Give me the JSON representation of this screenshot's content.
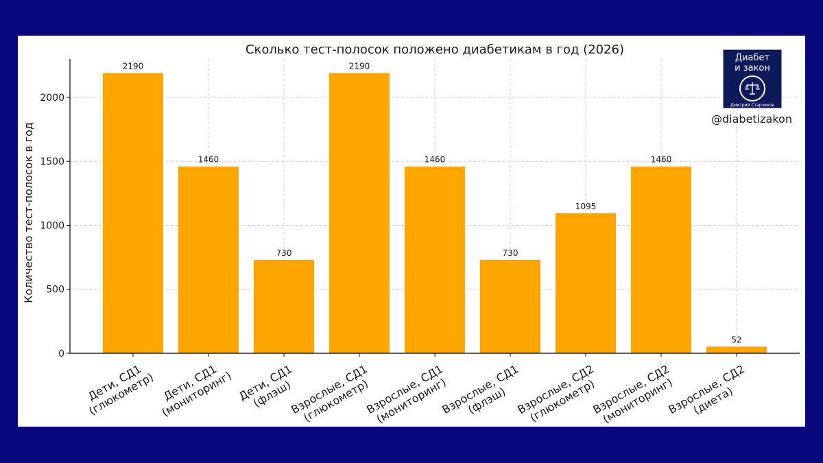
{
  "chart_data": {
    "type": "bar",
    "title": "Сколько тест-полосок положено диабетикам в год (2026)",
    "xlabel": "",
    "ylabel": "Количество тест-полосок в год",
    "ylim": [
      0,
      2300
    ],
    "yticks": [
      0,
      500,
      1000,
      1500,
      2000
    ],
    "grid": true,
    "categories": [
      "Дети, СД1 (глюкометр)",
      "Дети, СД1 (мониторинг)",
      "Дети, СД1 (флэш)",
      "Взрослые, СД1 (глюкометр)",
      "Взрослые, СД1 (мониторинг)",
      "Взрослые, СД1 (флэш)",
      "Взрослые, СД2 (глюкометр)",
      "Взрослые, СД2 (мониторинг)",
      "Взрослые, СД2 (диета)"
    ],
    "category_lines": [
      [
        "Дети, СД1",
        "(глюкометр)"
      ],
      [
        "Дети, СД1",
        "(мониторинг)"
      ],
      [
        "Дети, СД1",
        "(флэш)"
      ],
      [
        "Взрослые, СД1",
        "(глюкометр)"
      ],
      [
        "Взрослые, СД1",
        "(мониторинг)"
      ],
      [
        "Взрослые, СД1",
        "(флэш)"
      ],
      [
        "Взрослые, СД2",
        "(глюкометр)"
      ],
      [
        "Взрослые, СД2",
        "(мониторинг)"
      ],
      [
        "Взрослые, СД2",
        "(диета)"
      ]
    ],
    "values": [
      2190,
      1460,
      730,
      2190,
      1460,
      730,
      1095,
      1460,
      52
    ],
    "bar_color": "#ffa500"
  },
  "logo": {
    "line1": "Диабет",
    "line2": "и закон",
    "author": "Дмитрий Старчиков",
    "icon": "scales-of-justice-icon",
    "bg_color": "#0c1a5c"
  },
  "handle": "@diabetizakon",
  "colors": {
    "background": "#0a0a7e",
    "card": "#ffffff"
  }
}
